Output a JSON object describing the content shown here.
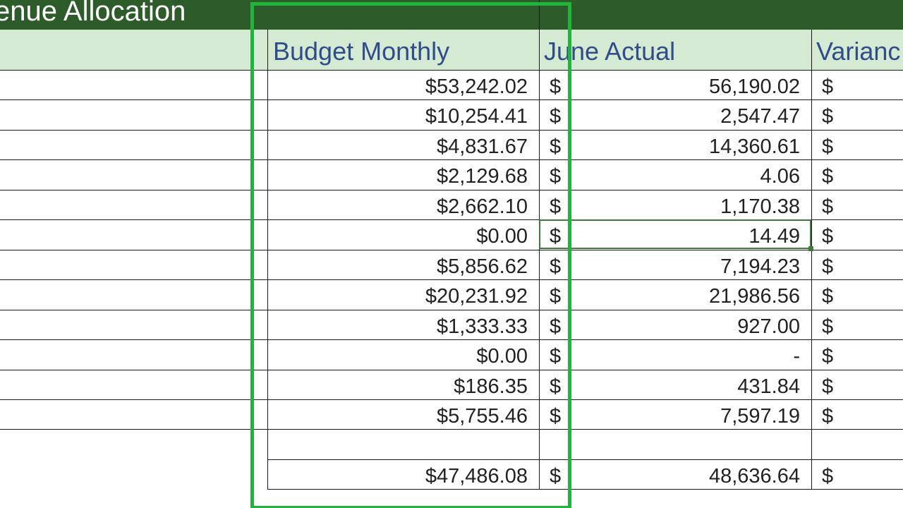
{
  "title": "enue Allocation",
  "headers": {
    "budget_monthly": "Budget Monthly",
    "june_actual": "June Actual",
    "variance": "Varianc"
  },
  "currency_symbol": "$",
  "rows": [
    {
      "budget": "$53,242.02",
      "actual": "56,190.02"
    },
    {
      "budget": "$10,254.41",
      "actual": "2,547.47"
    },
    {
      "budget": "$4,831.67",
      "actual": "14,360.61"
    },
    {
      "budget": "$2,129.68",
      "actual": "4.06"
    },
    {
      "budget": "$2,662.10",
      "actual": "1,170.38"
    },
    {
      "budget": "$0.00",
      "actual": "14.49"
    },
    {
      "budget": "$5,856.62",
      "actual": "7,194.23"
    },
    {
      "budget": "$20,231.92",
      "actual": "21,986.56"
    },
    {
      "budget": "$1,333.33",
      "actual": "927.00"
    },
    {
      "budget": "$0.00",
      "actual": "-"
    },
    {
      "budget": "$186.35",
      "actual": "431.84"
    },
    {
      "budget": "$5,755.46",
      "actual": "7,597.19"
    }
  ],
  "totals": {
    "budget": "$47,486.08",
    "actual": "48,636.64"
  },
  "colors": {
    "title_bar": "#2e5b2a",
    "header_fill": "#d4ead2",
    "header_text": "#2f4d8a",
    "highlight_box": "#1fb53b",
    "selection": "#3f7a3c"
  }
}
